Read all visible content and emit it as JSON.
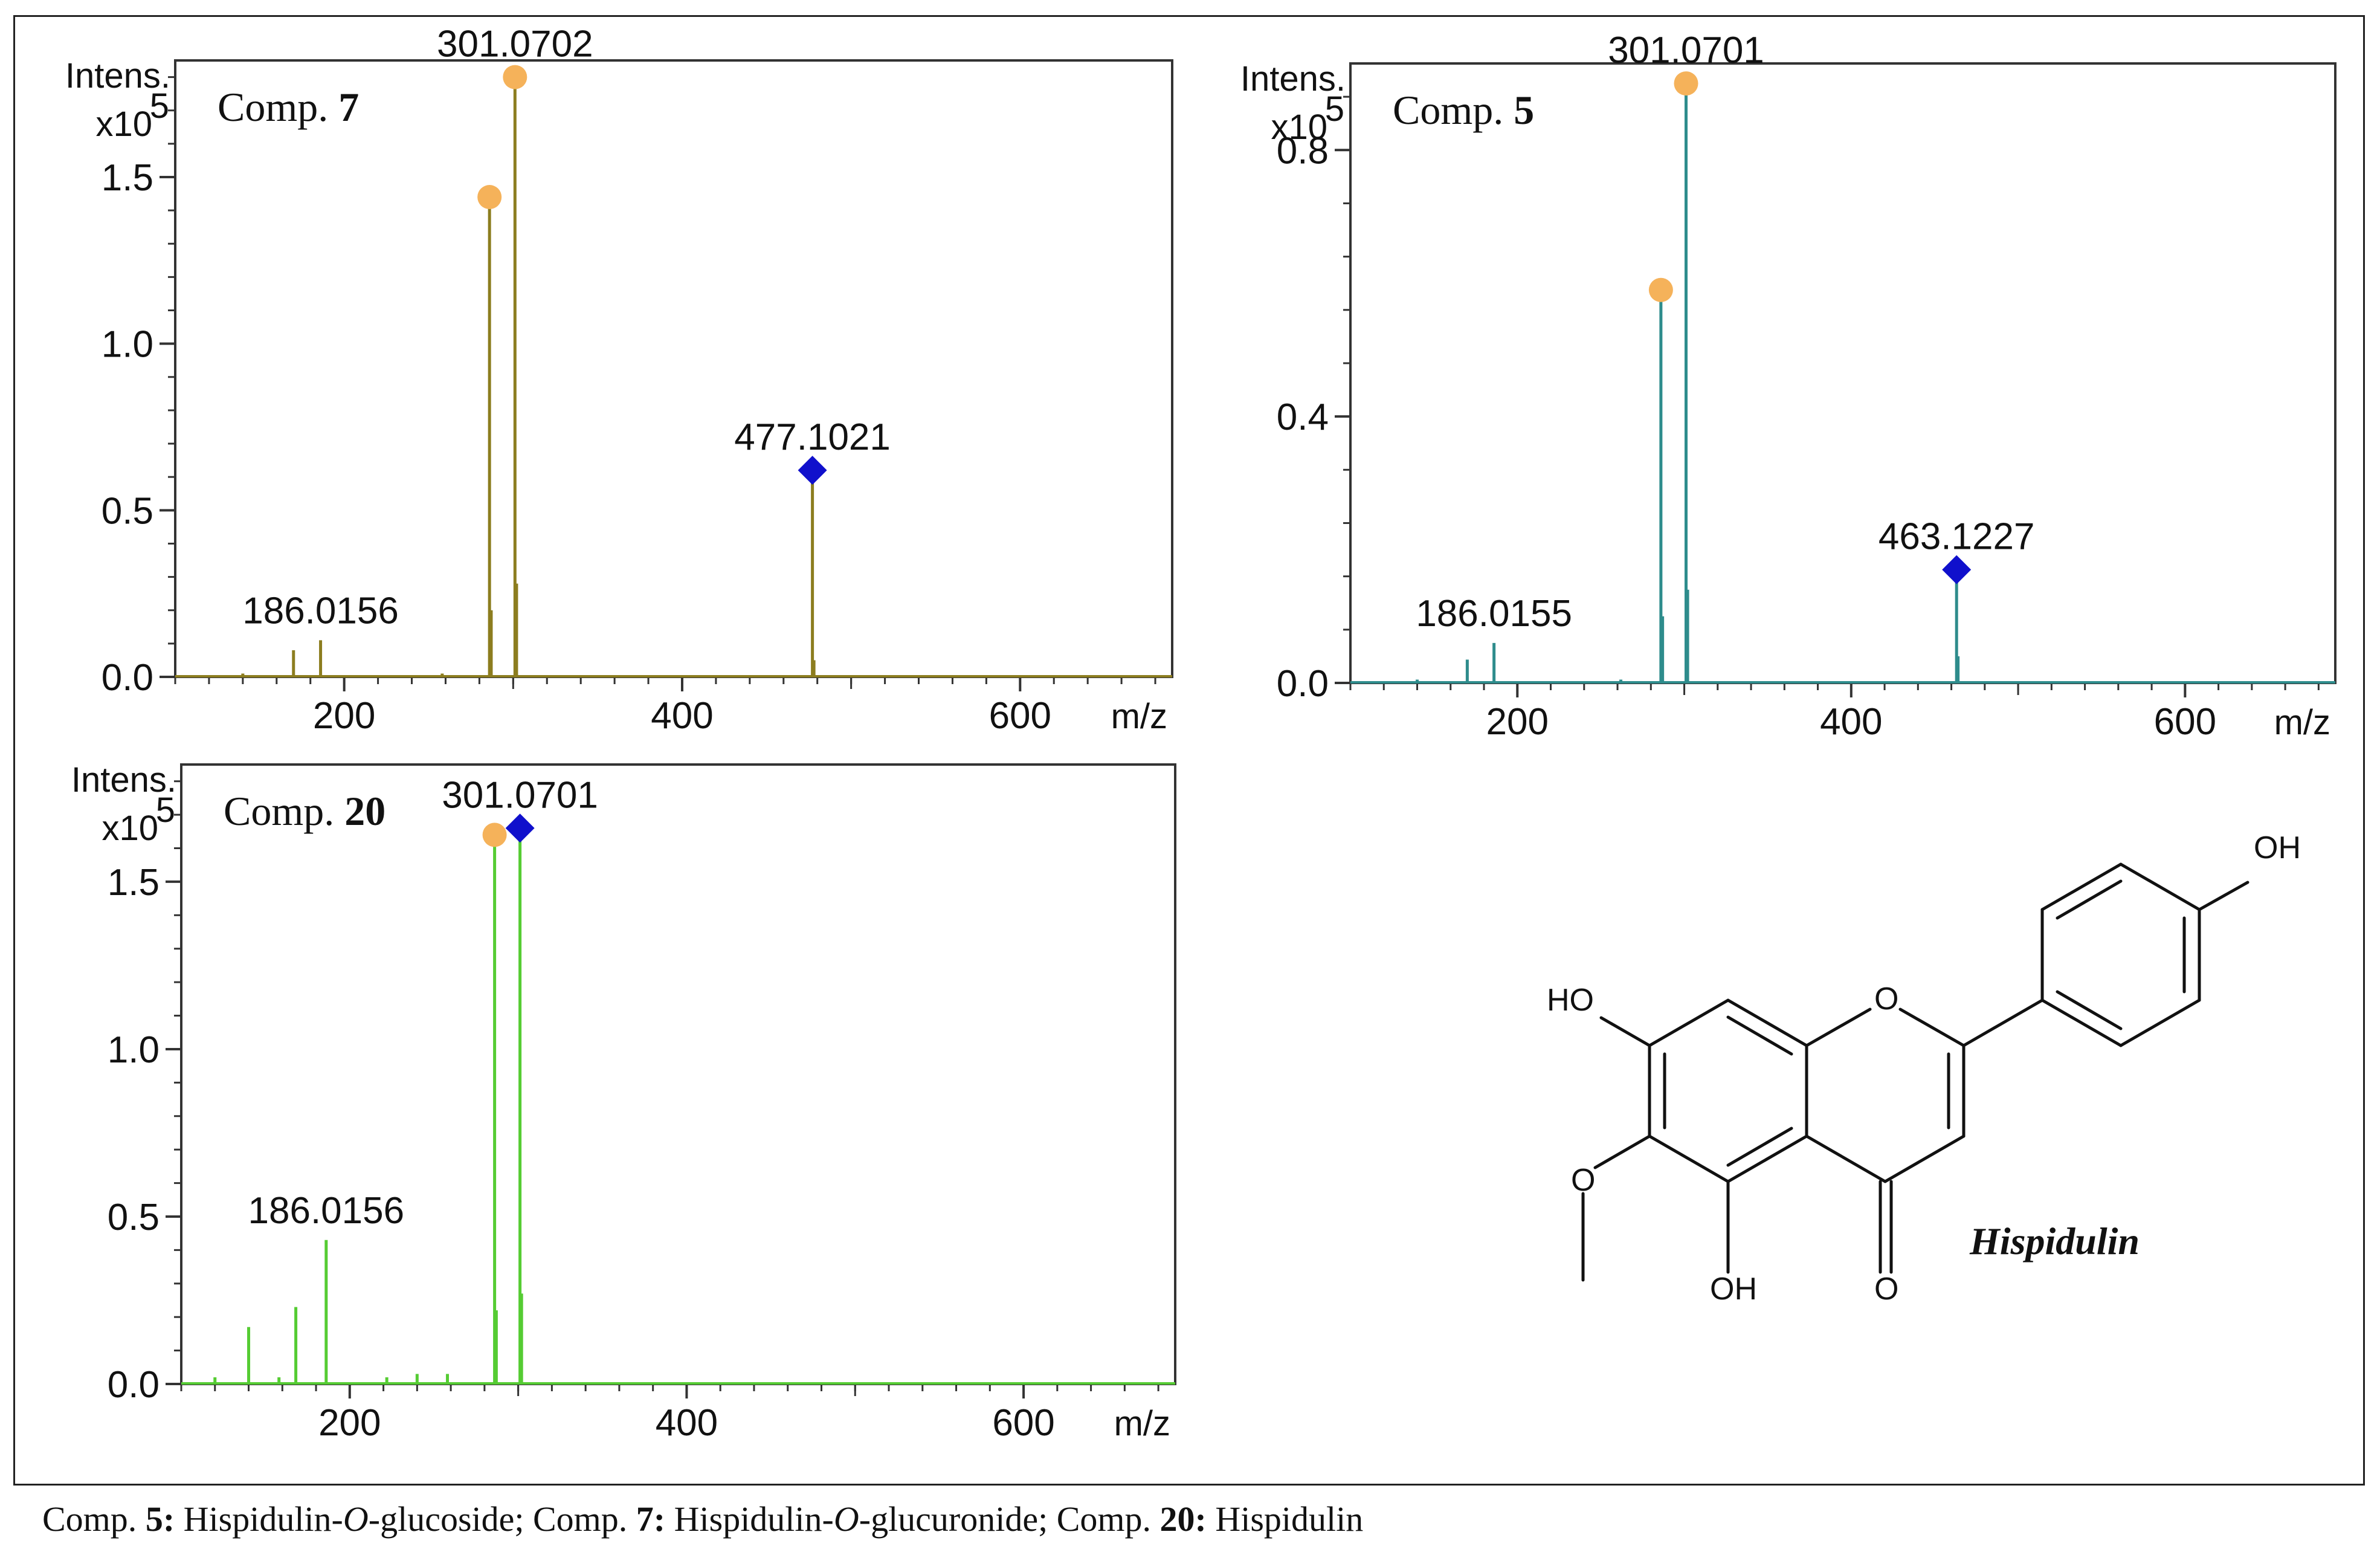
{
  "chart_data": [
    {
      "type": "bar",
      "panel": "Comp. 7",
      "title_prefix": "Comp.",
      "title_num": "7",
      "ylabel": "Intens.",
      "yscale": "x10",
      "yscale_exp": "5",
      "xlabel": "m/z",
      "xlim": [
        100,
        690
      ],
      "ylim": [
        0.0,
        1.85
      ],
      "xticks": [
        "200",
        "400",
        "600"
      ],
      "xtick_values": [
        200,
        400,
        600
      ],
      "yticks": [
        "0.0",
        "0.5",
        "1.0",
        "1.5"
      ],
      "ytick_values": [
        0.0,
        0.5,
        1.0,
        1.5
      ],
      "color": "#8c7d1f",
      "peaks": [
        {
          "mz": 140,
          "intensity": 0.01
        },
        {
          "mz": 170,
          "intensity": 0.08
        },
        {
          "mz": 186.0156,
          "intensity": 0.11,
          "label": "186.0156"
        },
        {
          "mz": 258,
          "intensity": 0.01
        },
        {
          "mz": 286,
          "intensity": 1.44,
          "marker": "circle"
        },
        {
          "mz": 287,
          "intensity": 0.2
        },
        {
          "mz": 301.0702,
          "intensity": 1.8,
          "marker": "circle",
          "label": "301.0702"
        },
        {
          "mz": 302,
          "intensity": 0.28
        },
        {
          "mz": 477.1021,
          "intensity": 0.62,
          "marker": "diamond",
          "label": "477.1021"
        },
        {
          "mz": 478,
          "intensity": 0.05
        }
      ]
    },
    {
      "type": "bar",
      "panel": "Comp. 5",
      "title_prefix": "Comp.",
      "title_num": "5",
      "ylabel": "Intens.",
      "yscale": "x10",
      "yscale_exp": "5",
      "xlabel": "m/z",
      "xlim": [
        100,
        690
      ],
      "ylim": [
        0.0,
        0.93
      ],
      "xticks": [
        "200",
        "400",
        "600"
      ],
      "xtick_values": [
        200,
        400,
        600
      ],
      "yticks": [
        "0.0",
        "0.4",
        "0.8"
      ],
      "ytick_values": [
        0.0,
        0.4,
        0.8
      ],
      "color": "#2e8c8c",
      "peaks": [
        {
          "mz": 140,
          "intensity": 0.005
        },
        {
          "mz": 170,
          "intensity": 0.035
        },
        {
          "mz": 186.0155,
          "intensity": 0.06,
          "label": "186.0155"
        },
        {
          "mz": 262,
          "intensity": 0.005
        },
        {
          "mz": 286,
          "intensity": 0.59,
          "marker": "circle"
        },
        {
          "mz": 287,
          "intensity": 0.1
        },
        {
          "mz": 301.0701,
          "intensity": 0.9,
          "marker": "circle",
          "label": "301.0701"
        },
        {
          "mz": 302,
          "intensity": 0.14
        },
        {
          "mz": 463.1227,
          "intensity": 0.17,
          "marker": "diamond",
          "label": "463.1227"
        },
        {
          "mz": 464,
          "intensity": 0.04
        }
      ]
    },
    {
      "type": "bar",
      "panel": "Comp. 20",
      "title_prefix": "Comp.",
      "title_num": "20",
      "ylabel": "Intens.",
      "yscale": "x10",
      "yscale_exp": "5",
      "xlabel": "m/z",
      "xlim": [
        100,
        690
      ],
      "ylim": [
        0.0,
        1.85
      ],
      "xticks": [
        "200",
        "400",
        "600"
      ],
      "xtick_values": [
        200,
        400,
        600
      ],
      "yticks": [
        "0.0",
        "0.5",
        "1.0",
        "1.5"
      ],
      "ytick_values": [
        0.0,
        0.5,
        1.0,
        1.5
      ],
      "color": "#55cc33",
      "peaks": [
        {
          "mz": 120,
          "intensity": 0.02
        },
        {
          "mz": 140,
          "intensity": 0.17
        },
        {
          "mz": 158,
          "intensity": 0.02
        },
        {
          "mz": 168,
          "intensity": 0.23
        },
        {
          "mz": 186.0156,
          "intensity": 0.43,
          "label": "186.0156"
        },
        {
          "mz": 222,
          "intensity": 0.02
        },
        {
          "mz": 240,
          "intensity": 0.03
        },
        {
          "mz": 258,
          "intensity": 0.03
        },
        {
          "mz": 286,
          "intensity": 1.64,
          "marker": "circle"
        },
        {
          "mz": 287,
          "intensity": 0.22
        },
        {
          "mz": 301.0701,
          "intensity": 1.66,
          "marker": "diamond",
          "label": "301.0701"
        },
        {
          "mz": 302,
          "intensity": 0.27
        }
      ]
    }
  ],
  "markers": {
    "circle_color": "#f5b25a",
    "diamond_color": "#1010cc"
  },
  "structure": {
    "name": "Hispidulin",
    "labels": {
      "oh_top": "OH",
      "ho_left": "HO",
      "o_ring": "O",
      "o_methoxy": "O",
      "oh_bottom": "OH",
      "o_carbonyl": "O"
    }
  },
  "caption": {
    "c5_prefix": "Comp. ",
    "c5_num": "5:",
    "c5_text_a": " Hispidulin-",
    "c5_o": "O",
    "c5_text_b": "-glucoside; ",
    "c7_prefix": "Comp. ",
    "c7_num": "7:",
    "c7_text_a": " Hispidulin-",
    "c7_o": "O",
    "c7_text_b": "-glucuronide; ",
    "c20_prefix": "Comp. ",
    "c20_num": "20:",
    "c20_text": " Hispidulin"
  }
}
